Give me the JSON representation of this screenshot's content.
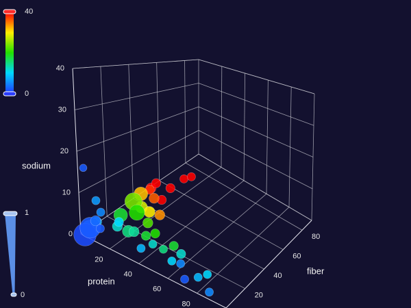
{
  "chart_data": {
    "type": "scatter3d",
    "xlabel": "protein",
    "ylabel": "fiber",
    "zlabel": "sodium",
    "xlim": [
      0,
      100
    ],
    "ylim": [
      0,
      90
    ],
    "zlim": [
      0,
      40
    ],
    "xticks": [
      20,
      40,
      60,
      80
    ],
    "yticks": [
      20,
      40,
      60,
      80
    ],
    "zticks": [
      0,
      10,
      20,
      30,
      40
    ],
    "grid": true,
    "color_dim": "y",
    "color_range": [
      0,
      40
    ],
    "color_stops": [
      "#1f3cff",
      "#00d8ff",
      "#22e000",
      "#ffee00",
      "#ff0000"
    ],
    "size_range": [
      0,
      1
    ],
    "x": [
      5,
      3,
      8,
      2,
      10,
      12,
      6,
      4,
      2,
      15,
      18,
      20,
      12,
      25,
      22,
      30,
      28,
      16,
      35,
      40,
      45,
      50,
      55,
      35,
      60,
      18,
      22,
      14,
      26,
      20,
      15,
      18,
      12,
      22,
      25,
      20,
      24,
      70,
      75,
      85,
      80,
      65
    ],
    "y": [
      2,
      4,
      3,
      1,
      5,
      2,
      6,
      8,
      2,
      12,
      10,
      15,
      18,
      14,
      20,
      18,
      22,
      24,
      20,
      12,
      15,
      18,
      10,
      8,
      12,
      28,
      30,
      32,
      34,
      36,
      38,
      40,
      42,
      40,
      44,
      60,
      62,
      2,
      8,
      5,
      10,
      5
    ],
    "z": [
      2,
      1,
      4,
      0,
      6,
      3,
      8,
      2,
      16,
      2,
      4,
      1,
      3,
      2,
      5,
      1,
      3,
      6,
      2,
      2,
      1,
      2,
      1,
      1,
      3,
      4,
      3,
      6,
      2,
      5,
      6,
      8,
      5,
      4,
      7,
      5,
      6,
      1,
      1,
      0,
      2,
      3
    ],
    "size": [
      0.9,
      0.7,
      0.3,
      1.0,
      0.2,
      0.2,
      0.2,
      0.3,
      0.15,
      0.3,
      0.25,
      0.4,
      0.5,
      0.3,
      0.6,
      0.25,
      0.3,
      0.7,
      0.25,
      0.2,
      0.2,
      0.25,
      0.2,
      0.2,
      0.25,
      0.4,
      0.35,
      0.5,
      0.3,
      0.3,
      0.25,
      0.25,
      0.3,
      0.25,
      0.25,
      0.2,
      0.2,
      0.2,
      0.2,
      0.2,
      0.2,
      0.2
    ]
  }
}
